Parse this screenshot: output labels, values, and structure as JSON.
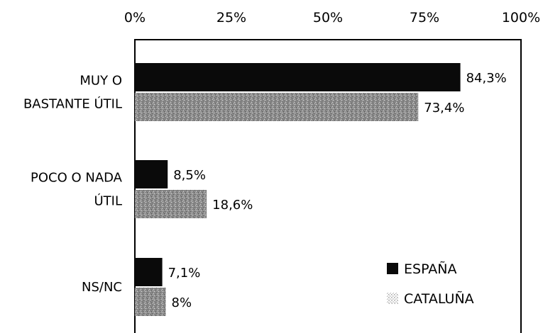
{
  "chart_data": {
    "type": "bar",
    "orientation": "horizontal",
    "title": "",
    "xlabel": "",
    "ylabel": "",
    "xlim": [
      0,
      100
    ],
    "x_ticks": [
      "0%",
      "25%",
      "50%",
      "75%",
      "100%"
    ],
    "x_axis_position": "top",
    "grid": false,
    "legend_position": "bottom-right",
    "categories": [
      {
        "lines": [
          "MUY O",
          "BASTANTE ÚTIL"
        ]
      },
      {
        "lines": [
          "POCO O NADA",
          "ÚTIL"
        ]
      },
      {
        "lines": [
          "NS/NC"
        ]
      }
    ],
    "series": [
      {
        "name": "ESPAÑA",
        "color": "#0a0a0a",
        "values": [
          84.3,
          8.5,
          7.1
        ],
        "labels": [
          "84,3%",
          "8,5%",
          "7,1%"
        ]
      },
      {
        "name": "CATALUÑA",
        "color": "#8a8a8a",
        "values": [
          73.4,
          18.6,
          8
        ],
        "labels": [
          "73,4%",
          "18,6%",
          "8%"
        ]
      }
    ]
  }
}
